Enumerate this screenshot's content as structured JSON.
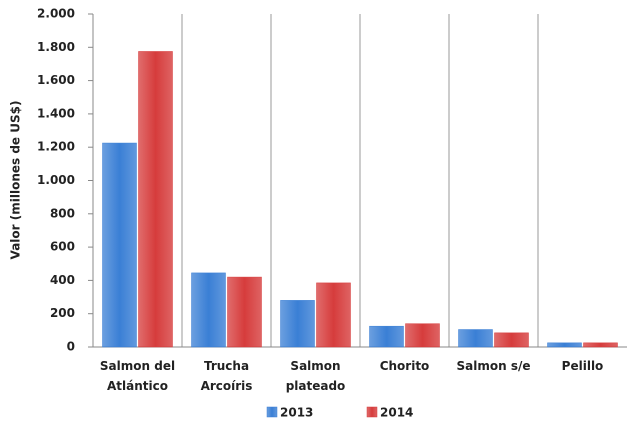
{
  "chart_data": {
    "type": "bar",
    "y_label": "Valor (millones de US$)",
    "categories": [
      "Salmon del Atlántico",
      "Trucha Arcoíris",
      "Salmon plateado",
      "Chorito",
      "Salmon s/e",
      "Pelillo"
    ],
    "series": [
      {
        "name": "2013",
        "color": "#3a7fd5",
        "values": [
          1225,
          445,
          280,
          125,
          105,
          25
        ]
      },
      {
        "name": "2014",
        "color": "#d63c3c",
        "values": [
          1775,
          420,
          385,
          140,
          85,
          25
        ]
      }
    ],
    "ylim": [
      0,
      2000
    ],
    "yticks": [
      0,
      200,
      400,
      600,
      800,
      {
        "value": 1000,
        "label": "1.000"
      },
      {
        "value": 1200,
        "label": "1.200"
      },
      {
        "value": 1400,
        "label": "1.400"
      },
      {
        "value": 1600,
        "label": "1.600"
      },
      {
        "value": 1800,
        "label": "1.800"
      },
      {
        "value": 2000,
        "label": "2.000"
      }
    ],
    "legend": "bottom"
  }
}
